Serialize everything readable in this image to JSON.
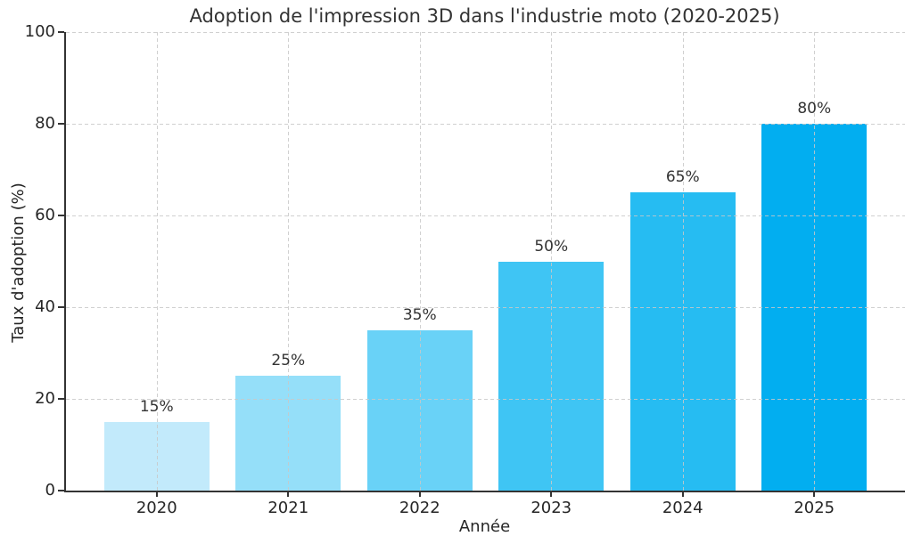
{
  "chart_data": {
    "type": "bar",
    "title": "Adoption de l'impression 3D dans l'industrie moto (2020-2025)",
    "xlabel": "Année",
    "ylabel": "Taux d'adoption (%)",
    "categories": [
      "2020",
      "2021",
      "2022",
      "2023",
      "2024",
      "2025"
    ],
    "values": [
      15,
      25,
      35,
      50,
      65,
      80
    ],
    "bar_labels": [
      "15%",
      "25%",
      "35%",
      "50%",
      "65%",
      "80%"
    ],
    "bar_colors": [
      "#C2EAFB",
      "#95DFF9",
      "#69D2F7",
      "#3FC5F4",
      "#26BCF2",
      "#02AEF0"
    ],
    "ylim": [
      0,
      100
    ],
    "yticks": [
      0,
      20,
      40,
      60,
      80,
      100
    ],
    "grid": "dashed-both-axes",
    "grid_color": "#cccccc",
    "spine_color": "#333333",
    "legend": "none"
  }
}
